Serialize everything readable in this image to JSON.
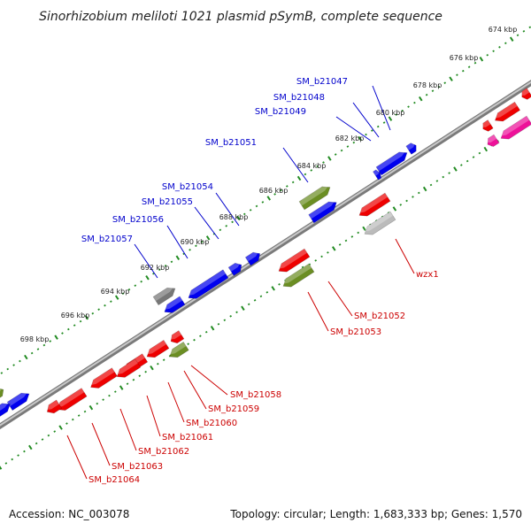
{
  "title": "Sinorhizobium meliloti 1021 plasmid pSymB, complete sequence",
  "footer": {
    "accession": "Accession: NC_003078",
    "topology": "Topology: circular; Length: 1,683,333 bp; Genes: 1,570"
  },
  "colors": {
    "backbone": "#9a9a9a",
    "forward_gene": "#0000ee",
    "reverse_gene": "#ee0000",
    "green_gene": "#6b8e23",
    "grey_gene": "#777777",
    "pink_gene": "#ee1199",
    "tick": "#228b22",
    "label_blue": "#0000cc",
    "label_red": "#cc0000"
  },
  "kbp_ticks": [
    "674 kbp",
    "676 kbp",
    "678 kbp",
    "680 kbp",
    "682 kbp",
    "684 kbp",
    "686 kbp",
    "688 kbp",
    "690 kbp",
    "692 kbp",
    "694 kbp",
    "696 kbp",
    "698 kbp"
  ],
  "forward_gene_labels": [
    "SM_b21047",
    "SM_b21048",
    "SM_b21049",
    "SM_b21051",
    "SM_b21054",
    "SM_b21055",
    "SM_b21056",
    "SM_b21057"
  ],
  "reverse_gene_labels": [
    "wzx1",
    "SM_b21052",
    "SM_b21053",
    "SM_b21058",
    "SM_b21059",
    "SM_b21060",
    "SM_b21061",
    "SM_b21062",
    "SM_b21063",
    "SM_b21064"
  ]
}
